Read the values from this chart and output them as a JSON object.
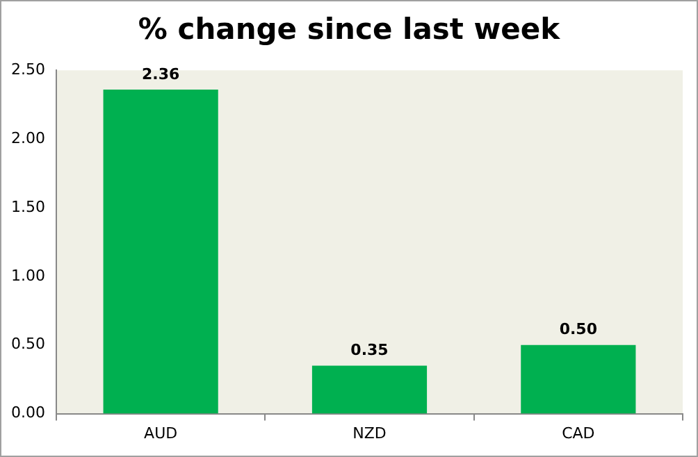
{
  "chart_data": {
    "type": "bar",
    "title": "% change since last week",
    "categories": [
      "AUD",
      "NZD",
      "CAD"
    ],
    "values": [
      2.36,
      0.35,
      0.5
    ],
    "value_labels": [
      "2.36",
      "0.35",
      "0.50"
    ],
    "color": "#00b050",
    "ylim": [
      0,
      2.5
    ],
    "yticks": [
      {
        "value": 0,
        "label": "0.00"
      },
      {
        "value": 0.5,
        "label": "0.50"
      },
      {
        "value": 1,
        "label": "1.00"
      },
      {
        "value": 1.5,
        "label": "1.50"
      },
      {
        "value": 2,
        "label": "2.00"
      },
      {
        "value": 2.5,
        "label": "2.50"
      }
    ],
    "grid": false,
    "legend": false
  }
}
